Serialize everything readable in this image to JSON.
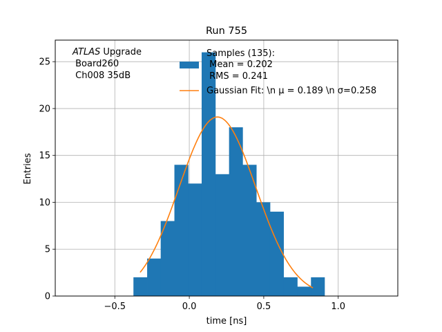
{
  "chart_data": {
    "type": "bar",
    "title": "Run 755",
    "xlabel": "time [ns]",
    "ylabel": "Entries",
    "xlim": [
      -0.9,
      1.4
    ],
    "ylim": [
      0,
      27.3
    ],
    "xticks": [
      -0.5,
      0.0,
      0.5,
      1.0
    ],
    "xtick_labels": [
      "−0.5",
      "0.0",
      "0.5",
      "1.0"
    ],
    "yticks": [
      0,
      5,
      10,
      15,
      20,
      25
    ],
    "ytick_labels": [
      "0",
      "5",
      "10",
      "15",
      "20",
      "25"
    ],
    "grid": true,
    "bar_color": "#1f77b4",
    "fit_color": "#ff7f0e",
    "histogram": {
      "bin_edges": [
        -0.375,
        -0.283,
        -0.192,
        -0.1,
        -0.008,
        0.083,
        0.175,
        0.267,
        0.358,
        0.45,
        0.542,
        0.633,
        0.725,
        0.817,
        0.908
      ],
      "counts": [
        2,
        4,
        8,
        14,
        12,
        26,
        13,
        18,
        14,
        10,
        9,
        2,
        1,
        2
      ]
    },
    "fit": {
      "mu": 0.189,
      "sigma": 0.258,
      "amplitude": 19.1,
      "x_range": [
        -0.33,
        0.83
      ]
    },
    "legend": {
      "position": "top-right",
      "entries": [
        {
          "kind": "bar",
          "lines": [
            "Samples (135):",
            " Mean = 0.202",
            " RMS = 0.241"
          ]
        },
        {
          "kind": "line",
          "lines": [
            "Gaussian Fit: \\n μ = 0.189 \\n σ=0.258"
          ]
        }
      ]
    },
    "annotation": {
      "italic": "ATLAS",
      "rest": " Upgrade",
      "lines": [
        " Board260",
        " Ch008 35dB"
      ]
    }
  }
}
